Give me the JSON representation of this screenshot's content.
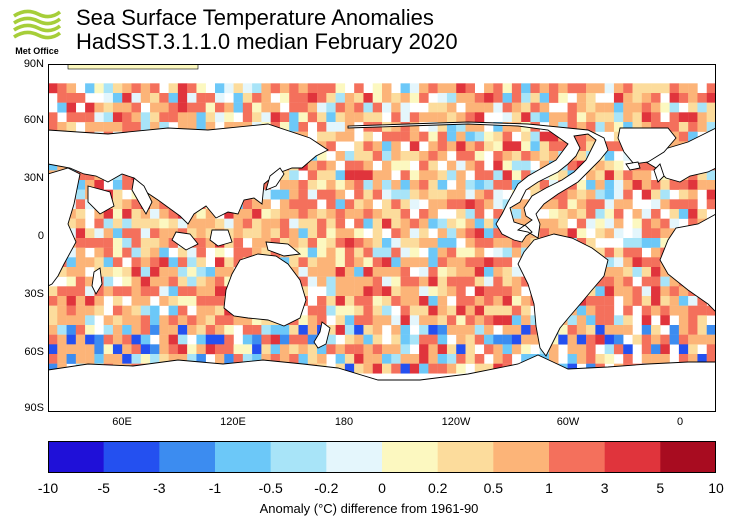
{
  "header": {
    "logo_text": "Met Office",
    "title": "Sea Surface Temperature Anomalies",
    "subtitle": "HadSST.3.1.1.0 median February 2020"
  },
  "map": {
    "projection": "equirectangular",
    "lon_range": [
      20,
      380
    ],
    "lat_range": [
      -90,
      90
    ],
    "lat_labels": [
      "90N",
      "60N",
      "30N",
      "0",
      "30S",
      "60S",
      "90S"
    ],
    "lon_labels": [
      "60E",
      "120E",
      "180",
      "120W",
      "60W",
      "0"
    ],
    "land_color": "#ffffff",
    "coast_color": "#000000"
  },
  "colorbar": {
    "labels": [
      "-10",
      "-5",
      "-3",
      "-1",
      "-0.5",
      "-0.2",
      "0",
      "0.2",
      "0.5",
      "1",
      "3",
      "5",
      "10"
    ],
    "colors": [
      "#1f10d8",
      "#2450f0",
      "#3c8cf0",
      "#6cc8f8",
      "#a8e4f8",
      "#e4f6fc",
      "#fcf8c0",
      "#fcdc9c",
      "#fcb478",
      "#f4705c",
      "#e0343c",
      "#a80c20"
    ],
    "title": "Anomaly (°C) difference from 1961-90"
  }
}
